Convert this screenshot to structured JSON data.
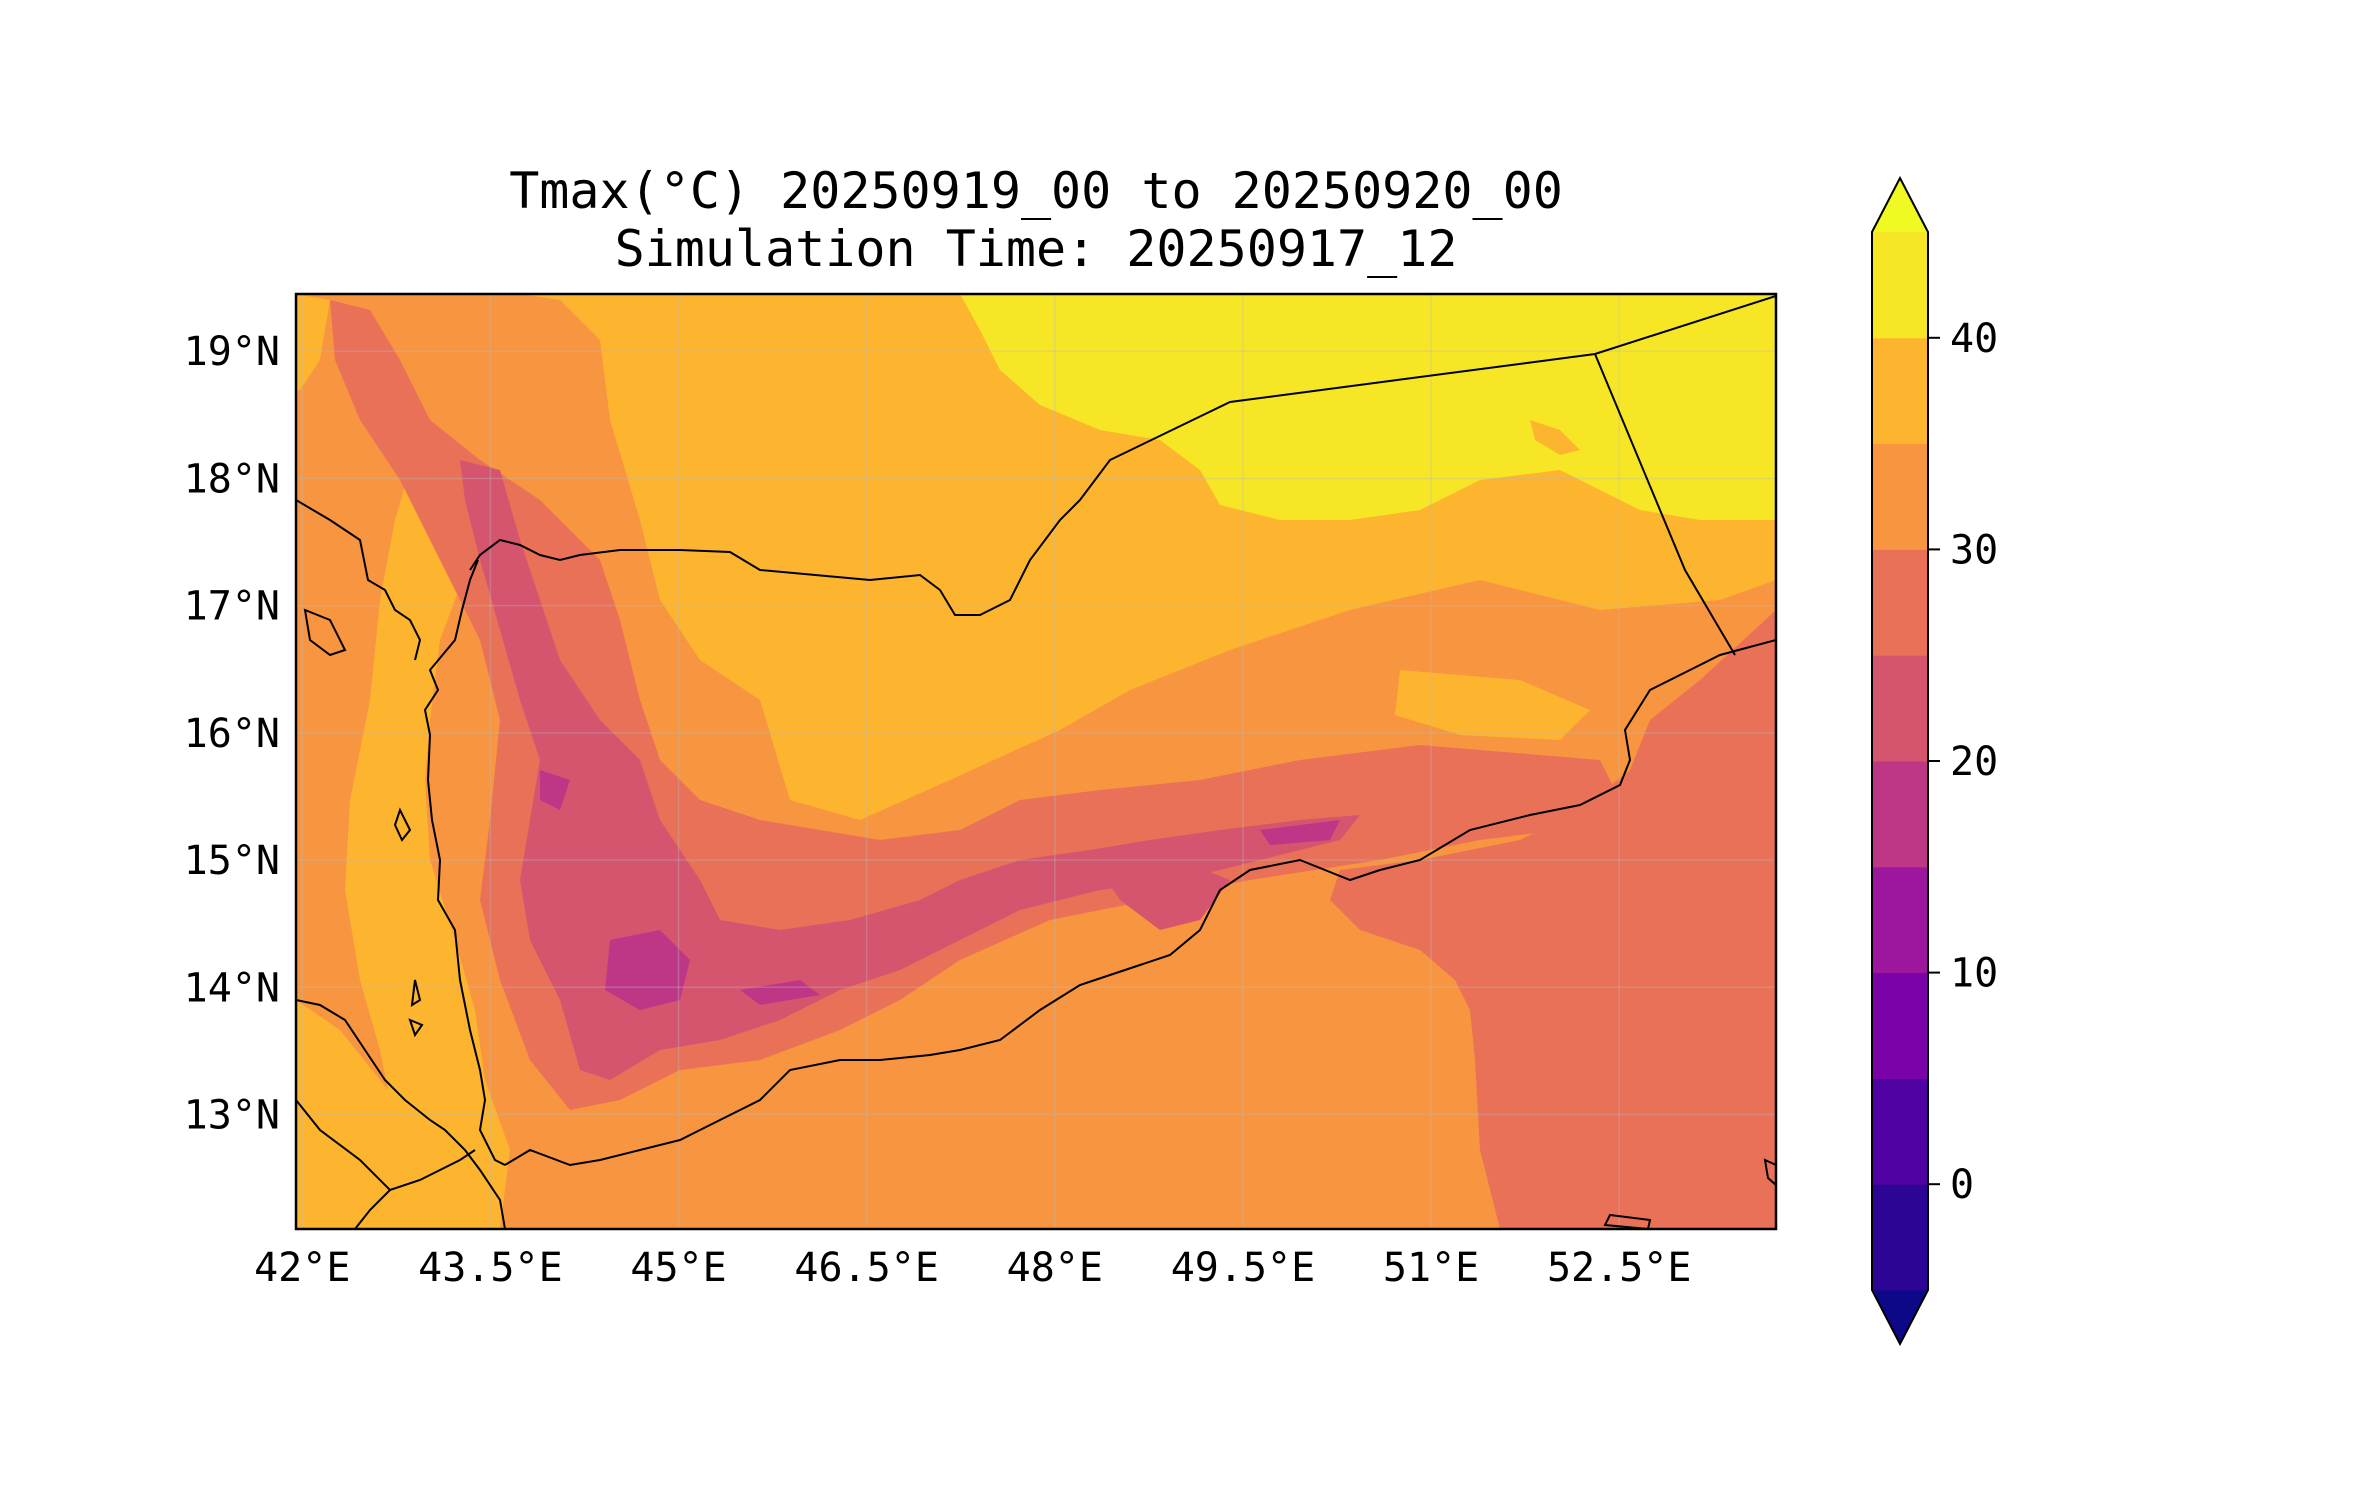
{
  "title": {
    "line1": "Tmax(°C) 20250919_00 to 20250920_00",
    "line2": "Simulation Time: 20250917_12"
  },
  "map": {
    "lon_range": [
      41.95,
      53.75
    ],
    "lat_range": [
      12.1,
      19.45
    ],
    "x_ticks": [
      {
        "value": 42,
        "label": "42°E"
      },
      {
        "value": 43.5,
        "label": "43.5°E"
      },
      {
        "value": 45,
        "label": "45°E"
      },
      {
        "value": 46.5,
        "label": "46.5°E"
      },
      {
        "value": 48,
        "label": "48°E"
      },
      {
        "value": 49.5,
        "label": "49.5°E"
      },
      {
        "value": 51,
        "label": "51°E"
      },
      {
        "value": 52.5,
        "label": "52.5°E"
      }
    ],
    "y_ticks": [
      {
        "value": 19,
        "label": "19°N"
      },
      {
        "value": 18,
        "label": "18°N"
      },
      {
        "value": 17,
        "label": "17°N"
      },
      {
        "value": 16,
        "label": "16°N"
      },
      {
        "value": 15,
        "label": "15°N"
      },
      {
        "value": 14,
        "label": "14°N"
      },
      {
        "value": 13,
        "label": "13°N"
      }
    ],
    "gridlines": true,
    "coastline_color": "#000000",
    "border_color": "#000000"
  },
  "colorbar": {
    "levels": [
      -5,
      0,
      5,
      10,
      15,
      20,
      25,
      30,
      35,
      40,
      45
    ],
    "colors": [
      "#2c0594",
      "#5102a3",
      "#7a02a8",
      "#9c179e",
      "#bd3786",
      "#d5546e",
      "#e97158",
      "#f89540",
      "#fdb42f",
      "#f6e626"
    ],
    "extend": "both",
    "under_color": "#0d0887",
    "over_color": "#f0f921",
    "ticks": [
      {
        "value": 0,
        "label": "0"
      },
      {
        "value": 10,
        "label": "10"
      },
      {
        "value": 20,
        "label": "20"
      },
      {
        "value": 30,
        "label": "30"
      },
      {
        "value": 40,
        "label": "40"
      }
    ]
  }
}
